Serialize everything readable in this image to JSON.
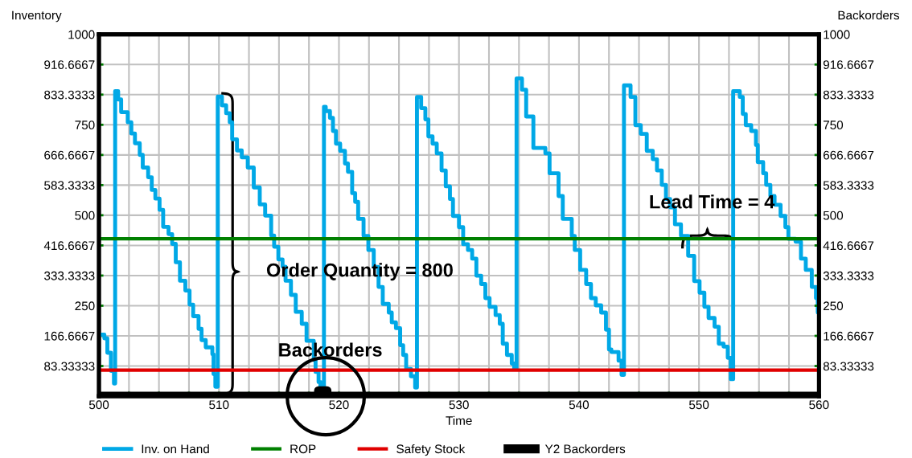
{
  "chart_data": {
    "type": "step",
    "xlabel": "Time",
    "ylabel": "Inventory",
    "y2label": "Backorders",
    "xlim": [
      500,
      560
    ],
    "xticks": [
      500,
      {
        "value": 502.5,
        "label": null
      },
      {
        "value": 505,
        "label": null
      },
      {
        "value": 507.5,
        "label": null
      },
      510,
      {
        "value": 512.5,
        "label": null
      },
      {
        "value": 515,
        "label": null
      },
      {
        "value": 517.5,
        "label": null
      },
      520,
      {
        "value": 522.5,
        "label": null
      },
      {
        "value": 525,
        "label": null
      },
      {
        "value": 527.5,
        "label": null
      },
      530,
      {
        "value": 532.5,
        "label": null
      },
      {
        "value": 535,
        "label": null
      },
      {
        "value": 537.5,
        "label": null
      },
      540,
      {
        "value": 542.5,
        "label": null
      },
      {
        "value": 545,
        "label": null
      },
      {
        "value": 547.5,
        "label": null
      },
      550,
      {
        "value": 552.5,
        "label": null
      },
      {
        "value": 555,
        "label": null
      },
      {
        "value": 557.5,
        "label": null
      },
      560
    ],
    "ylim": [
      0,
      1000
    ],
    "yticks": [
      {
        "value": 0,
        "label": null
      },
      83.33333,
      166.6667,
      250,
      333.3333,
      416.6667,
      500,
      583.3333,
      666.6667,
      750,
      833.3333,
      916.6667,
      1000
    ],
    "y2lim": [
      0,
      1000
    ],
    "y2ticks": [
      {
        "value": 0,
        "label": null
      },
      83.33333,
      166.6667,
      250,
      333.3333,
      416.6667,
      500,
      583.3333,
      666.6667,
      750,
      833.3333,
      916.6667,
      1000
    ],
    "grid": true,
    "legend": "bottom",
    "series": [
      {
        "name": "Inv. on Hand",
        "color": "#00a8e6",
        "x": [
          500,
          500.45,
          500.7,
          501.0,
          501.25,
          501.35,
          501.6,
          501.85,
          502.4,
          502.7,
          503.0,
          503.4,
          503.65,
          504.1,
          504.4,
          504.7,
          505.05,
          505.35,
          505.8,
          506.1,
          506.4,
          506.75,
          507.2,
          507.55,
          507.85,
          508.3,
          508.55,
          508.9,
          509.45,
          509.55,
          509.7,
          509.9,
          510.25,
          510.6,
          510.9,
          511.1,
          511.5,
          511.9,
          512.4,
          512.9,
          513.4,
          513.85,
          514.35,
          514.6,
          514.95,
          515.3,
          515.55,
          516.0,
          516.4,
          516.9,
          517.3,
          517.9,
          518.05,
          518.3,
          518.45,
          518.75,
          518.9,
          519.25,
          519.5,
          519.75,
          520.1,
          520.5,
          520.75,
          521.1,
          521.35,
          521.6,
          522.05,
          522.45,
          522.9,
          523.3,
          523.65,
          524.15,
          524.4,
          524.75,
          525.1,
          525.35,
          525.6,
          526.0,
          526.35,
          526.5,
          526.85,
          527.2,
          527.45,
          527.8,
          528.15,
          528.55,
          528.9,
          529.25,
          529.5,
          530.0,
          530.35,
          530.75,
          531.1,
          531.45,
          531.85,
          532.2,
          532.55,
          533.05,
          533.4,
          533.65,
          534.0,
          534.4,
          534.6,
          534.8,
          535.25,
          535.6,
          536.2,
          537.2,
          537.55,
          538.3,
          538.65,
          539.4,
          539.65,
          540.1,
          540.6,
          541.0,
          541.4,
          541.85,
          542.25,
          542.5,
          542.7,
          543.3,
          543.55,
          543.75,
          544.3,
          544.7,
          545.15,
          545.65,
          546.15,
          546.5,
          546.9,
          547.25,
          547.6,
          548.0,
          548.5,
          549.1,
          549.6,
          550.05,
          550.45,
          550.8,
          551.3,
          551.65,
          552.05,
          552.4,
          552.65,
          552.85,
          553.4,
          553.65,
          553.9,
          554.35,
          554.75,
          554.9,
          555.35,
          555.6,
          555.95,
          556.3,
          556.8,
          557.2,
          557.45,
          558.05,
          558.5,
          558.9,
          559.4,
          559.75,
          559.9,
          560
        ],
        "values": [
          170,
          160,
          120,
          70,
          35,
          843,
          820,
          785,
          757,
          726,
          699,
          667,
          632,
          605,
          570,
          546,
          515,
          468,
          448,
          421,
          370,
          319,
          292,
          253,
          221,
          186,
          155,
          135,
          116,
          61,
          26,
          828,
          804,
          782,
          757,
          710,
          679,
          660,
          632,
          577,
          530,
          499,
          444,
          413,
          378,
          358,
          319,
          280,
          233,
          200,
          153,
          100,
          67,
          39,
          20,
          800,
          788,
          769,
          733,
          698,
          678,
          643,
          620,
          561,
          537,
          490,
          443,
          404,
          357,
          302,
          255,
          231,
          204,
          188,
          141,
          114,
          75,
          55,
          24,
          827,
          796,
          765,
          718,
          698,
          671,
          624,
          580,
          545,
          498,
          467,
          420,
          404,
          380,
          333,
          310,
          271,
          247,
          224,
          200,
          145,
          114,
          90,
          75,
          878,
          847,
          773,
          686,
          671,
          616,
          553,
          490,
          443,
          404,
          349,
          310,
          271,
          251,
          231,
          184,
          129,
          122,
          98,
          59,
          859,
          827,
          749,
          725,
          678,
          655,
          624,
          584,
          545,
          522,
          475,
          443,
          388,
          318,
          286,
          247,
          216,
          192,
          145,
          137,
          106,
          47,
          843,
          827,
          780,
          749,
          733,
          694,
          647,
          616,
          584,
          553,
          529,
          498,
          467,
          435,
          427,
          380,
          349,
          302,
          271,
          231,
          231
        ]
      },
      {
        "name": "ROP",
        "type": "line",
        "color": "#008000",
        "x": [
          500,
          560
        ],
        "values": [
          435,
          435
        ]
      },
      {
        "name": "Safety Stock",
        "type": "line",
        "color": "#e00000",
        "x": [
          500,
          560
        ],
        "values": [
          72,
          72
        ]
      },
      {
        "name": "Y2 Backorders",
        "axis": "y2",
        "color": "#000000",
        "x": [
          500,
          518.3,
          519.0,
          560
        ],
        "values": [
          0,
          15,
          0,
          0
        ]
      }
    ],
    "annotations": [
      "Order Quantity = 800",
      "Lead Time = 4",
      {
        "text": "Backorders",
        "x": 518.9,
        "y": 0
      }
    ]
  }
}
